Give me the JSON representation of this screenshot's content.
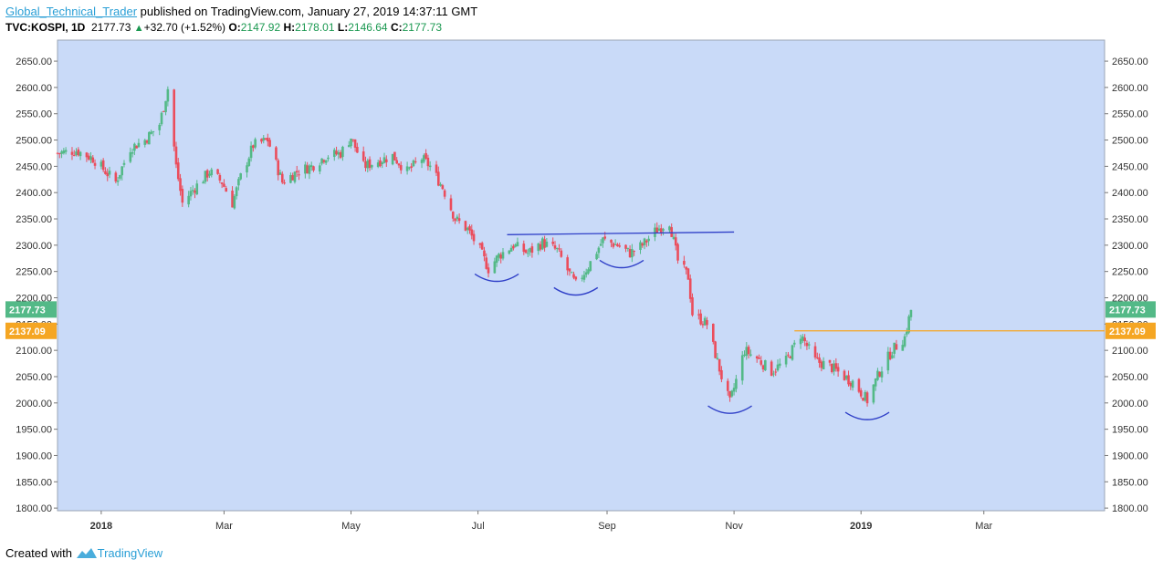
{
  "header": {
    "author": "Global_Technical_Trader",
    "published_text": "published on TradingView.com, January 27, 2019 14:37:11 GMT",
    "symbol": "TVC:KOSPI, 1D",
    "last": "2177.73",
    "change": "+32.70 (+1.52%)",
    "open_label": "O:",
    "open": "2147.92",
    "high_label": "H:",
    "high": "2178.01",
    "low_label": "L:",
    "low": "2146.64",
    "close_label": "C:",
    "close": "2177.73"
  },
  "footer": {
    "created_with": "Created with",
    "brand": "TradingView"
  },
  "colors": {
    "plot_bg": "#c9daf8",
    "up": "#53b987",
    "down": "#eb4d5c",
    "trendline": "#3040c8",
    "support": "#f5a623",
    "last_badge": "#53b987",
    "level_badge": "#f5a623"
  },
  "chart_data": {
    "type": "candlestick",
    "title": "",
    "ylim": [
      1795,
      2690
    ],
    "y_ticks": [
      "2650.00",
      "2600.00",
      "2550.00",
      "2500.00",
      "2450.00",
      "2400.00",
      "2350.00",
      "2300.00",
      "2250.00",
      "2200.00",
      "2150.00",
      "2100.00",
      "2050.00",
      "2000.00",
      "1950.00",
      "1900.00",
      "1850.00",
      "1800.00"
    ],
    "x_ticks": [
      {
        "label": "2018",
        "bold": true,
        "date": "2018-01-01"
      },
      {
        "label": "Mar",
        "bold": false,
        "date": "2018-03-01"
      },
      {
        "label": "May",
        "bold": false,
        "date": "2018-05-01"
      },
      {
        "label": "Jul",
        "bold": false,
        "date": "2018-07-01"
      },
      {
        "label": "Sep",
        "bold": false,
        "date": "2018-09-01"
      },
      {
        "label": "Nov",
        "bold": false,
        "date": "2018-11-01"
      },
      {
        "label": "2019",
        "bold": true,
        "date": "2019-01-01"
      },
      {
        "label": "Mar",
        "bold": false,
        "date": "2019-03-01"
      }
    ],
    "date_range": [
      "2017-12-11",
      "2019-04-28"
    ],
    "price_path": [
      [
        "2017-12-11",
        2475
      ],
      [
        "2017-12-20",
        2480
      ],
      [
        "2017-12-28",
        2465
      ],
      [
        "2018-01-08",
        2420
      ],
      [
        "2018-01-15",
        2485
      ],
      [
        "2018-01-22",
        2500
      ],
      [
        "2018-01-29",
        2530
      ],
      [
        "2018-02-02",
        2598
      ],
      [
        "2018-02-06",
        2450
      ],
      [
        "2018-02-09",
        2380
      ],
      [
        "2018-02-14",
        2405
      ],
      [
        "2018-02-22",
        2440
      ],
      [
        "2018-02-28",
        2420
      ],
      [
        "2018-03-05",
        2380
      ],
      [
        "2018-03-09",
        2430
      ],
      [
        "2018-03-15",
        2490
      ],
      [
        "2018-03-22",
        2500
      ],
      [
        "2018-03-29",
        2420
      ],
      [
        "2018-04-05",
        2440
      ],
      [
        "2018-04-12",
        2450
      ],
      [
        "2018-04-19",
        2470
      ],
      [
        "2018-04-26",
        2475
      ],
      [
        "2018-05-01",
        2505
      ],
      [
        "2018-05-07",
        2450
      ],
      [
        "2018-05-14",
        2460
      ],
      [
        "2018-05-21",
        2470
      ],
      [
        "2018-05-28",
        2440
      ],
      [
        "2018-06-04",
        2465
      ],
      [
        "2018-06-08",
        2450
      ],
      [
        "2018-06-14",
        2410
      ],
      [
        "2018-06-20",
        2350
      ],
      [
        "2018-06-26",
        2330
      ],
      [
        "2018-07-02",
        2290
      ],
      [
        "2018-07-06",
        2255
      ],
      [
        "2018-07-11",
        2280
      ],
      [
        "2018-07-18",
        2300
      ],
      [
        "2018-07-25",
        2285
      ],
      [
        "2018-08-01",
        2305
      ],
      [
        "2018-08-08",
        2290
      ],
      [
        "2018-08-14",
        2245
      ],
      [
        "2018-08-17",
        2225
      ],
      [
        "2018-08-23",
        2260
      ],
      [
        "2018-08-30",
        2310
      ],
      [
        "2018-09-06",
        2300
      ],
      [
        "2018-09-12",
        2285
      ],
      [
        "2018-09-18",
        2300
      ],
      [
        "2018-09-25",
        2330
      ],
      [
        "2018-10-01",
        2345
      ],
      [
        "2018-10-05",
        2270
      ],
      [
        "2018-10-10",
        2240
      ],
      [
        "2018-10-12",
        2170
      ],
      [
        "2018-10-19",
        2150
      ],
      [
        "2018-10-26",
        2050
      ],
      [
        "2018-10-30",
        2000
      ],
      [
        "2018-11-06",
        2100
      ],
      [
        "2018-11-12",
        2085
      ],
      [
        "2018-11-19",
        2060
      ],
      [
        "2018-11-26",
        2080
      ],
      [
        "2018-12-03",
        2130
      ],
      [
        "2018-12-10",
        2080
      ],
      [
        "2018-12-17",
        2070
      ],
      [
        "2018-12-24",
        2050
      ],
      [
        "2018-12-28",
        2040
      ],
      [
        "2019-01-04",
        2005
      ],
      [
        "2019-01-10",
        2060
      ],
      [
        "2019-01-16",
        2100
      ],
      [
        "2019-01-22",
        2125
      ],
      [
        "2019-01-25",
        2177
      ]
    ],
    "trendline": {
      "from": [
        "2018-07-15",
        2320
      ],
      "to": [
        "2018-11-01",
        2325
      ]
    },
    "support": {
      "from": [
        "2018-11-30",
        2137
      ],
      "value": 2137.09
    },
    "arcs": [
      {
        "center": "2018-07-10",
        "level": 2238
      },
      {
        "center": "2018-08-17",
        "level": 2212
      },
      {
        "center": "2018-09-08",
        "level": 2264
      },
      {
        "center": "2018-10-30",
        "level": 1987
      },
      {
        "center": "2019-01-04",
        "level": 1975
      }
    ],
    "last_price": {
      "value": 2177.73,
      "label": "2177.73"
    },
    "level_price": {
      "value": 2137.09,
      "label": "2137.09"
    }
  }
}
